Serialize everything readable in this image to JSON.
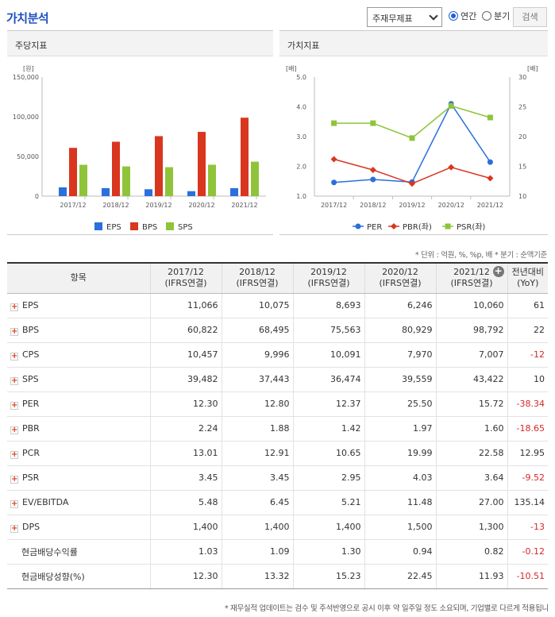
{
  "header": {
    "title": "가치분석",
    "select_value": "주재무제표",
    "radio_annual": "연간",
    "radio_quarter": "분기",
    "search_label": "검색"
  },
  "left_panel": {
    "title": "주당지표"
  },
  "right_panel": {
    "title": "가치지표"
  },
  "chart_data": [
    {
      "type": "bar",
      "title": "주당지표",
      "ylabel": "[원]",
      "yticks": [
        "150,000",
        "100,000",
        "50,000",
        "0"
      ],
      "ylim": [
        0,
        150000
      ],
      "categories": [
        "2017/12",
        "2018/12",
        "2019/12",
        "2020/12",
        "2021/12"
      ],
      "series": [
        {
          "name": "EPS",
          "color": "#2b6fdc",
          "values": [
            11066,
            10075,
            8693,
            6246,
            10060
          ]
        },
        {
          "name": "BPS",
          "color": "#d9361f",
          "values": [
            60822,
            68495,
            75563,
            80929,
            98792
          ]
        },
        {
          "name": "SPS",
          "color": "#8fc43a",
          "values": [
            39482,
            37443,
            36474,
            39559,
            43422
          ]
        }
      ],
      "legend_position": "bottom"
    },
    {
      "type": "line",
      "title": "가치지표",
      "ylabel_left": "[배]",
      "ylabel_right": "[배]",
      "yticks_left": [
        "5.0",
        "4.0",
        "3.0",
        "2.0",
        "1.0"
      ],
      "yticks_right": [
        "30",
        "25",
        "20",
        "15",
        "10"
      ],
      "ylim_left": [
        1,
        5
      ],
      "ylim_right": [
        10,
        30
      ],
      "categories": [
        "2017/12",
        "2018/12",
        "2019/12",
        "2020/12",
        "2021/12"
      ],
      "series": [
        {
          "name": "PER",
          "axis": "right",
          "color": "#2b6fdc",
          "marker": "circle",
          "values": [
            12.3,
            12.8,
            12.37,
            25.5,
            15.72
          ]
        },
        {
          "name": "PBR(좌)",
          "axis": "left",
          "color": "#d9361f",
          "marker": "diamond",
          "values": [
            2.24,
            1.88,
            1.42,
            1.97,
            1.6
          ]
        },
        {
          "name": "PSR(좌)",
          "axis": "left",
          "color": "#8fc43a",
          "marker": "square",
          "values": [
            3.45,
            3.45,
            2.95,
            4.03,
            3.64
          ]
        }
      ],
      "legend_position": "bottom"
    }
  ],
  "table": {
    "unit_note": "* 단위 : 억원, %, %p, 배   * 분기 : 순액기준",
    "col_item": "항목",
    "columns": [
      {
        "year": "2017/12",
        "basis": "(IFRS연결)"
      },
      {
        "year": "2018/12",
        "basis": "(IFRS연결)"
      },
      {
        "year": "2019/12",
        "basis": "(IFRS연결)"
      },
      {
        "year": "2020/12",
        "basis": "(IFRS연결)"
      },
      {
        "year": "2021/12",
        "basis": "(IFRS연결)"
      }
    ],
    "yoy_header_1": "전년대비",
    "yoy_header_2": "(YoY)",
    "rows": [
      {
        "label": "EPS",
        "expand": true,
        "values": [
          "11,066",
          "10,075",
          "8,693",
          "6,246",
          "10,060"
        ],
        "yoy": "61",
        "neg": false
      },
      {
        "label": "BPS",
        "expand": true,
        "values": [
          "60,822",
          "68,495",
          "75,563",
          "80,929",
          "98,792"
        ],
        "yoy": "22",
        "neg": false
      },
      {
        "label": "CPS",
        "expand": true,
        "values": [
          "10,457",
          "9,996",
          "10,091",
          "7,970",
          "7,007"
        ],
        "yoy": "-12",
        "neg": true
      },
      {
        "label": "SPS",
        "expand": true,
        "values": [
          "39,482",
          "37,443",
          "36,474",
          "39,559",
          "43,422"
        ],
        "yoy": "10",
        "neg": false
      },
      {
        "label": "PER",
        "expand": true,
        "values": [
          "12.30",
          "12.80",
          "12.37",
          "25.50",
          "15.72"
        ],
        "yoy": "-38.34",
        "neg": true
      },
      {
        "label": "PBR",
        "expand": true,
        "values": [
          "2.24",
          "1.88",
          "1.42",
          "1.97",
          "1.60"
        ],
        "yoy": "-18.65",
        "neg": true
      },
      {
        "label": "PCR",
        "expand": true,
        "values": [
          "13.01",
          "12.91",
          "10.65",
          "19.99",
          "22.58"
        ],
        "yoy": "12.95",
        "neg": false
      },
      {
        "label": "PSR",
        "expand": true,
        "values": [
          "3.45",
          "3.45",
          "2.95",
          "4.03",
          "3.64"
        ],
        "yoy": "-9.52",
        "neg": true
      },
      {
        "label": "EV/EBITDA",
        "expand": true,
        "values": [
          "5.48",
          "6.45",
          "5.21",
          "11.48",
          "27.00"
        ],
        "yoy": "135.14",
        "neg": false
      },
      {
        "label": "DPS",
        "expand": true,
        "values": [
          "1,400",
          "1,400",
          "1,400",
          "1,500",
          "1,300"
        ],
        "yoy": "-13",
        "neg": true
      },
      {
        "label": "현금배당수익률",
        "expand": false,
        "values": [
          "1.03",
          "1.09",
          "1.30",
          "0.94",
          "0.82"
        ],
        "yoy": "-0.12",
        "neg": true
      },
      {
        "label": "현금배당성향(%)",
        "expand": false,
        "values": [
          "12.30",
          "13.32",
          "15.23",
          "22.45",
          "11.93"
        ],
        "yoy": "-10.51",
        "neg": true
      }
    ]
  },
  "footer_note": "* 재무실적 업데이트는 검수 및 주석반영으로 공시 이후 약 일주일 정도 소요되며, 기업별로 다르게 적용됩니"
}
